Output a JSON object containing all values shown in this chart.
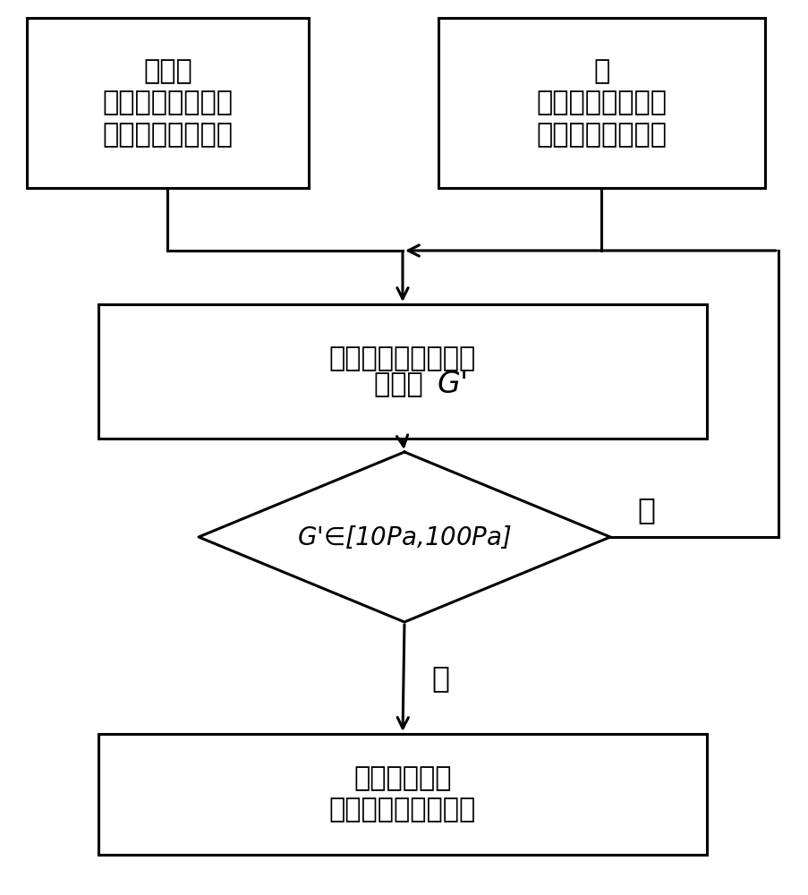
{
  "bg_color": "#ffffff",
  "line_color": "#000000",
  "text_color": "#000000",
  "box1_lines": [
    "氰酸酯树脂单体在",
    "流变仪上加热至预",
    "聚温度"
  ],
  "box2_lines": [
    "氰酸酯预聚树脂在",
    "流变仪上加热至熔",
    "融"
  ],
  "box3_line1": "监测树脂熔融物的储",
  "box3_line2": "能模量 ",
  "box4_lines": [
    "判断氰酸酯树脂预聚",
    "反应到达终点"
  ],
  "diamond_line1": "G’∈[10Pa,100Pa]",
  "yes_label": "是",
  "no_label": "否",
  "fontsize_cn": 22,
  "fontsize_diamond": 20,
  "fontsize_label": 24,
  "lw": 2.2,
  "fig_w": 9.04,
  "fig_h": 10.0,
  "dpi": 100
}
